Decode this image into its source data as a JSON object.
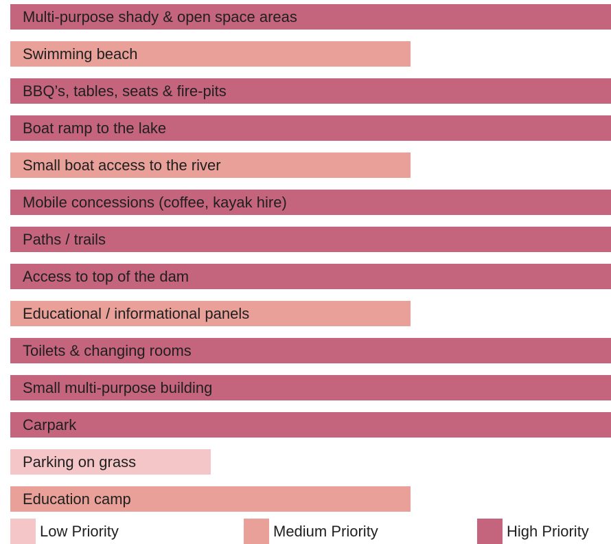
{
  "chart_data": {
    "type": "bar",
    "orientation": "horizontal",
    "categories": [
      "Multi-purpose shady & open space areas",
      "Swimming beach",
      "BBQ’s, tables, seats & fire-pits",
      "Boat ramp to the lake",
      "Small boat access to the river",
      "Mobile concessions (coffee, kayak hire)",
      "Paths / trails",
      "Access to top of the dam",
      "Educational / informational panels",
      "Toilets & changing rooms",
      "Small multi-purpose building",
      "Carpark",
      "Parking on grass",
      "Education camp"
    ],
    "values": [
      3,
      2,
      3,
      3,
      2,
      3,
      3,
      3,
      2,
      3,
      3,
      3,
      1,
      2
    ],
    "priority_levels": [
      {
        "value": 1,
        "name": "Low Priority",
        "color": "#f4c6c8"
      },
      {
        "value": 2,
        "name": "Medium Priority",
        "color": "#e8a098"
      },
      {
        "value": 3,
        "name": "High Priority",
        "color": "#c5647d"
      }
    ],
    "xlim": [
      0,
      3
    ],
    "grid": false,
    "legend_position": "bottom"
  }
}
